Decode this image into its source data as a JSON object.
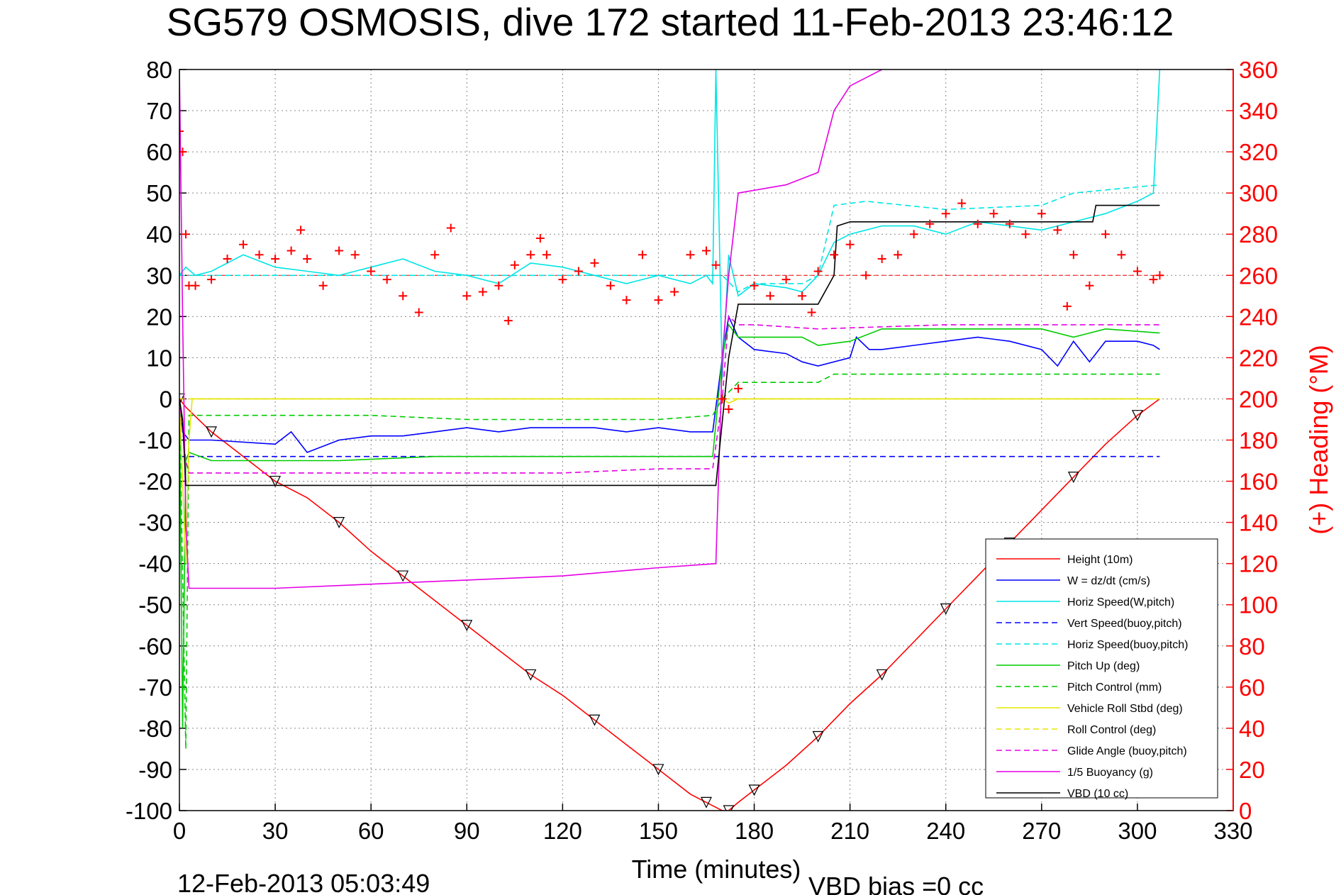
{
  "title": "SG579 OSMOSIS, dive 172 started 11-Feb-2013 23:46:12",
  "footer": {
    "timestamp": "12-Feb-2013 05:03:49",
    "vbd_bias": "VBD bias =0 cc"
  },
  "chart_data": {
    "type": "line",
    "title": "SG579 OSMOSIS, dive 172 started 11-Feb-2013 23:46:12",
    "xlabel": "Time (minutes)",
    "ylabel": "",
    "y2label": "(+) Heading (°M)",
    "xlim": [
      0,
      330
    ],
    "ylim": [
      -100,
      80
    ],
    "y2lim": [
      0,
      360
    ],
    "x_ticks": [
      "0",
      "30",
      "60",
      "90",
      "120",
      "150",
      "180",
      "210",
      "240",
      "270",
      "300",
      "330"
    ],
    "y_ticks": [
      "80",
      "70",
      "60",
      "50",
      "40",
      "30",
      "20",
      "10",
      "0",
      "-10",
      "-20",
      "-30",
      "-40",
      "-50",
      "-60",
      "-70",
      "-80",
      "-90",
      "-100"
    ],
    "y2_ticks": [
      "360",
      "340",
      "320",
      "300",
      "280",
      "260",
      "240",
      "220",
      "200",
      "180",
      "160",
      "140",
      "120",
      "100",
      "80",
      "60",
      "40",
      "20",
      "0"
    ],
    "grid": true,
    "legend_position": "lower-right",
    "legend": [
      {
        "label": "Height (10m)",
        "color": "#ff0000",
        "style": "solid"
      },
      {
        "label": "W = dz/dt (cm/s)",
        "color": "#0000ff",
        "style": "solid"
      },
      {
        "label": "Horiz Speed(W,pitch)",
        "color": "#00e5e5",
        "style": "solid"
      },
      {
        "label": "Vert Speed(buoy,pitch)",
        "color": "#0000ff",
        "style": "dashed"
      },
      {
        "label": "Horiz Speed(buoy,pitch)",
        "color": "#00e5e5",
        "style": "dashed"
      },
      {
        "label": "Pitch Up (deg)",
        "color": "#00cc00",
        "style": "solid"
      },
      {
        "label": "Pitch Control (mm)",
        "color": "#00cc00",
        "style": "dashed"
      },
      {
        "label": "Vehicle Roll Stbd (deg)",
        "color": "#e5e500",
        "style": "solid"
      },
      {
        "label": "Roll Control (deg)",
        "color": "#e5e500",
        "style": "dashed"
      },
      {
        "label": "Glide Angle (buoy,pitch)",
        "color": "#e500e5",
        "style": "dashed"
      },
      {
        "label": "1/5 Buoyancy (g)",
        "color": "#e500e5",
        "style": "solid"
      },
      {
        "label": "VBD (10 cc)",
        "color": "#000000",
        "style": "solid"
      }
    ],
    "series": [
      {
        "name": "Height (10m)",
        "color": "#ff0000",
        "style": "solid",
        "marker": "triangle",
        "x": [
          0,
          2,
          10,
          20,
          30,
          40,
          50,
          60,
          70,
          80,
          90,
          100,
          110,
          120,
          130,
          140,
          150,
          160,
          165,
          170,
          172,
          175,
          180,
          190,
          200,
          210,
          220,
          230,
          240,
          250,
          260,
          270,
          280,
          290,
          300,
          307
        ],
        "y": [
          0,
          -2,
          -8,
          -14,
          -20,
          -24,
          -30,
          -37,
          -43,
          -49,
          -55,
          -61,
          -67,
          -72,
          -78,
          -84,
          -90,
          -96,
          -98,
          -100,
          -100,
          -98,
          -95,
          -89,
          -82,
          -74,
          -67,
          -59,
          -51,
          -43,
          -35,
          -27,
          -19,
          -11,
          -4,
          0
        ]
      },
      {
        "name": "W = dz/dt (cm/s)",
        "color": "#0000ff",
        "style": "solid",
        "x": [
          0,
          1,
          3,
          10,
          30,
          35,
          40,
          50,
          60,
          70,
          80,
          90,
          100,
          110,
          120,
          130,
          140,
          150,
          160,
          167,
          170,
          172,
          175,
          180,
          190,
          195,
          200,
          210,
          212,
          216,
          220,
          230,
          240,
          250,
          260,
          270,
          275,
          280,
          285,
          290,
          300,
          305,
          307
        ],
        "y": [
          0,
          -8,
          -10,
          -10,
          -11,
          -8,
          -13,
          -10,
          -9,
          -9,
          -8,
          -7,
          -8,
          -7,
          -7,
          -7,
          -8,
          -7,
          -8,
          -8,
          10,
          20,
          15,
          12,
          11,
          9,
          8,
          10,
          15,
          12,
          12,
          13,
          14,
          15,
          14,
          12,
          8,
          14,
          9,
          14,
          14,
          13,
          12
        ]
      },
      {
        "name": "Horiz Speed(W,pitch)",
        "color": "#00e5e5",
        "style": "solid",
        "x": [
          0,
          2,
          5,
          10,
          20,
          30,
          40,
          50,
          60,
          70,
          80,
          90,
          100,
          110,
          120,
          130,
          140,
          150,
          160,
          165,
          167,
          168,
          170,
          172,
          175,
          180,
          190,
          195,
          200,
          205,
          210,
          220,
          230,
          240,
          250,
          260,
          270,
          280,
          290,
          300,
          305,
          307
        ],
        "y": [
          30,
          32,
          30,
          31,
          35,
          32,
          31,
          30,
          32,
          34,
          31,
          30,
          28,
          33,
          32,
          30,
          28,
          30,
          28,
          30,
          28,
          80,
          5,
          35,
          25,
          28,
          27,
          26,
          30,
          38,
          40,
          42,
          42,
          40,
          43,
          42,
          41,
          43,
          45,
          48,
          50,
          80
        ]
      },
      {
        "name": "Vert Speed(buoy,pitch)",
        "color": "#0000ff",
        "style": "dashed",
        "x": [
          0,
          307
        ],
        "y": [
          -14,
          -14
        ]
      },
      {
        "name": "Horiz Speed(buoy,pitch)",
        "color": "#00e5e5",
        "style": "dashed",
        "x": [
          0,
          165,
          170,
          175,
          180,
          195,
          200,
          205,
          215,
          240,
          270,
          280,
          307
        ],
        "y": [
          30,
          30,
          30,
          26,
          28,
          28,
          30,
          47,
          48,
          46,
          47,
          50,
          52
        ]
      },
      {
        "name": "Pitch Up (deg)",
        "color": "#00cc00",
        "style": "solid",
        "x": [
          0,
          1,
          2,
          3,
          10,
          30,
          50,
          80,
          100,
          130,
          150,
          167,
          170,
          172,
          175,
          180,
          195,
          200,
          210,
          220,
          240,
          260,
          270,
          280,
          290,
          307
        ],
        "y": [
          0,
          -80,
          -15,
          -13,
          -15,
          -15,
          -15,
          -14,
          -14,
          -14,
          -14,
          -14,
          10,
          18,
          15,
          15,
          15,
          13,
          14,
          17,
          17,
          17,
          17,
          15,
          17,
          16
        ]
      },
      {
        "name": "Pitch Control (mm)",
        "color": "#00cc00",
        "style": "dashed",
        "x": [
          0,
          2,
          3,
          30,
          60,
          90,
          120,
          150,
          167,
          170,
          175,
          200,
          205,
          240,
          270,
          307
        ],
        "y": [
          0,
          -85,
          -4,
          -4,
          -4,
          -5,
          -5,
          -5,
          -4,
          0,
          4,
          4,
          6,
          6,
          6,
          6
        ]
      },
      {
        "name": "Vehicle Roll Stbd (deg)",
        "color": "#e5e500",
        "style": "solid",
        "x": [
          0,
          2,
          3,
          4,
          10,
          30,
          60,
          90,
          120,
          150,
          167,
          170,
          172,
          175,
          180,
          200,
          220,
          240,
          260,
          280,
          300,
          307
        ],
        "y": [
          0,
          -40,
          -10,
          0,
          0,
          0,
          0,
          0,
          0,
          0,
          0,
          0,
          -1,
          0,
          0,
          0,
          0,
          0,
          0,
          0,
          0,
          0
        ]
      },
      {
        "name": "Roll Control (deg)",
        "color": "#e5e500",
        "style": "dashed",
        "x": [
          0,
          307
        ],
        "y": [
          0,
          0
        ]
      },
      {
        "name": "Glide Angle (buoy,pitch)",
        "color": "#e500e5",
        "style": "dashed",
        "x": [
          0,
          2,
          3,
          30,
          60,
          90,
          120,
          150,
          167,
          170,
          172,
          175,
          180,
          200,
          240,
          270,
          307
        ],
        "y": [
          0,
          -15,
          -18,
          -18,
          -18,
          -18,
          -18,
          -17,
          -17,
          0,
          20,
          18,
          18,
          17,
          18,
          18,
          18
        ]
      },
      {
        "name": "1/5 Buoyancy (g)",
        "color": "#e500e5",
        "style": "solid",
        "x": [
          0,
          1,
          2,
          3,
          30,
          60,
          90,
          120,
          150,
          168,
          170,
          172,
          175,
          190,
          200,
          205,
          210,
          215,
          220
        ],
        "y": [
          80,
          20,
          -30,
          -46,
          -46,
          -45,
          -44,
          -43,
          -41,
          -40,
          10,
          30,
          50,
          52,
          55,
          70,
          76,
          78,
          80
        ]
      },
      {
        "name": "VBD (10 cc)",
        "color": "#000000",
        "style": "solid",
        "x": [
          0,
          1,
          2,
          3,
          168,
          172,
          175,
          200,
          205,
          206,
          210,
          220,
          245,
          270,
          286,
          287,
          300,
          307
        ],
        "y": [
          0,
          -5,
          -21,
          -21,
          -21,
          10,
          23,
          23,
          30,
          42,
          43,
          43,
          43,
          43,
          43,
          47,
          47,
          47
        ]
      }
    ],
    "heading_series": {
      "name": "(+) Heading (°M)",
      "color": "#ff0000",
      "marker": "+",
      "x": [
        0,
        1,
        2,
        3,
        5,
        10,
        15,
        20,
        25,
        30,
        35,
        38,
        40,
        45,
        50,
        55,
        60,
        65,
        70,
        75,
        80,
        85,
        90,
        95,
        100,
        103,
        105,
        110,
        113,
        115,
        120,
        125,
        130,
        135,
        140,
        145,
        150,
        155,
        160,
        165,
        168,
        170,
        172,
        175,
        180,
        185,
        190,
        195,
        198,
        200,
        205,
        210,
        215,
        220,
        225,
        230,
        235,
        240,
        245,
        250,
        255,
        260,
        265,
        270,
        275,
        278,
        280,
        285,
        290,
        295,
        300,
        305,
        307
      ],
      "y": [
        330,
        320,
        280,
        255,
        255,
        258,
        268,
        275,
        270,
        268,
        272,
        282,
        268,
        255,
        272,
        270,
        262,
        258,
        250,
        242,
        270,
        283,
        250,
        252,
        255,
        238,
        265,
        270,
        278,
        270,
        258,
        262,
        266,
        255,
        248,
        270,
        248,
        252,
        270,
        272,
        265,
        200,
        195,
        205,
        255,
        250,
        258,
        250,
        242,
        262,
        270,
        275,
        260,
        268,
        270,
        280,
        285,
        290,
        295,
        285,
        290,
        285,
        280,
        290,
        282,
        245,
        270,
        255,
        280,
        270,
        262,
        258,
        260
      ]
    },
    "heading_reference": 260
  }
}
